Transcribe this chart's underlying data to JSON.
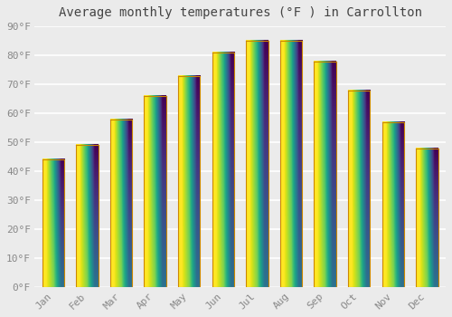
{
  "title": "Average monthly temperatures (°F ) in Carrollton",
  "months": [
    "Jan",
    "Feb",
    "Mar",
    "Apr",
    "May",
    "Jun",
    "Jul",
    "Aug",
    "Sep",
    "Oct",
    "Nov",
    "Dec"
  ],
  "values": [
    44,
    49,
    58,
    66,
    73,
    81,
    85,
    85,
    78,
    68,
    57,
    48
  ],
  "bar_color_bottom": "#FFD060",
  "bar_color_top": "#FFA000",
  "bar_edge_color": "#CC8800",
  "ylim": [
    0,
    90
  ],
  "yticks": [
    0,
    10,
    20,
    30,
    40,
    50,
    60,
    70,
    80,
    90
  ],
  "ytick_labels": [
    "0°F",
    "10°F",
    "20°F",
    "30°F",
    "40°F",
    "50°F",
    "60°F",
    "70°F",
    "80°F",
    "90°F"
  ],
  "title_fontsize": 10,
  "tick_fontsize": 8,
  "background_color": "#ebebeb",
  "grid_color": "#ffffff",
  "bar_width": 0.65
}
